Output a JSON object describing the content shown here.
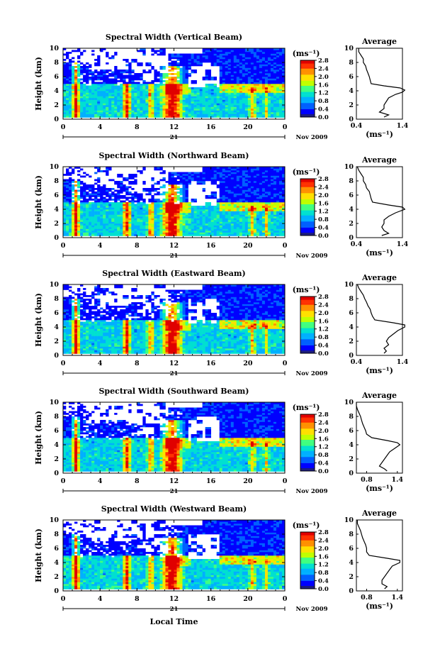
{
  "figure": {
    "xlabel": "Local Time",
    "date_label": "Nov 2009",
    "day_label": "21",
    "ylabel": "Height (km)",
    "colorbar_unit": "(ms⁻¹)",
    "profile_unit": "(ms⁻¹)",
    "profile_title": "Average"
  },
  "chart_data": [
    {
      "type": "heatmap",
      "title": "Spectral Width (Vertical Beam)",
      "xlabel": "Local Time",
      "ylabel": "Height (km)",
      "x_ticks": [
        "0",
        "4",
        "8",
        "12",
        "16",
        "20",
        "0"
      ],
      "xlim": [
        0,
        24
      ],
      "y_ticks": [
        "0",
        "2",
        "4",
        "6",
        "8",
        "10"
      ],
      "ylim": [
        0,
        10
      ],
      "colorbar": {
        "ticks": [
          "0.0",
          "0.4",
          "0.8",
          "1.2",
          "1.6",
          "2.0",
          "2.4",
          "2.8"
        ],
        "range": [
          0,
          2.8
        ],
        "colors": [
          "#1a1a80",
          "#0000ff",
          "#0060ff",
          "#00b0ff",
          "#00e0d0",
          "#40ff80",
          "#c0ff00",
          "#ffe000",
          "#ff9000",
          "#ff3000",
          "#e00000"
        ]
      },
      "profile": {
        "title": "Average",
        "x_ticks": [
          "0.4",
          "1.4"
        ],
        "xlim": [
          0.4,
          1.4
        ],
        "heights": [
          0.3,
          0.6,
          1.0,
          1.5,
          2.0,
          2.5,
          3.0,
          3.5,
          3.8,
          4.1,
          4.4,
          4.7,
          5.0,
          5.5,
          6.0,
          6.5,
          7.0,
          7.5,
          8.0,
          8.5,
          9.0,
          9.5,
          10.0
        ],
        "values": [
          1.0,
          1.1,
          0.9,
          1.0,
          1.0,
          1.05,
          1.1,
          1.25,
          1.4,
          1.45,
          1.35,
          1.0,
          0.72,
          0.7,
          0.68,
          0.65,
          0.62,
          0.6,
          0.55,
          0.55,
          0.5,
          0.45,
          0.45
        ]
      }
    },
    {
      "type": "heatmap",
      "title": "Spectral Width (Northward Beam)",
      "xlabel": "Local Time",
      "ylabel": "Height (km)",
      "x_ticks": [
        "0",
        "4",
        "8",
        "12",
        "16",
        "20",
        "0"
      ],
      "xlim": [
        0,
        24
      ],
      "y_ticks": [
        "0",
        "2",
        "4",
        "6",
        "8",
        "10"
      ],
      "ylim": [
        0,
        10
      ],
      "colorbar": {
        "ticks": [
          "0.0",
          "0.4",
          "0.8",
          "1.2",
          "1.6",
          "2.0",
          "2.4",
          "2.8"
        ],
        "range": [
          0,
          2.8
        ],
        "colors": [
          "#1a1a80",
          "#0000ff",
          "#0060ff",
          "#00b0ff",
          "#00e0d0",
          "#40ff80",
          "#c0ff00",
          "#ffe000",
          "#ff9000",
          "#ff3000",
          "#e00000"
        ]
      },
      "profile": {
        "title": "Average",
        "x_ticks": [
          "0.4",
          "1.4"
        ],
        "xlim": [
          0.4,
          1.4
        ],
        "heights": [
          0.3,
          0.6,
          1.0,
          1.5,
          2.0,
          2.5,
          3.0,
          3.5,
          4.0,
          4.3,
          4.6,
          5.0,
          5.5,
          6.0,
          6.5,
          7.0,
          7.5,
          8.0,
          8.5,
          9.0,
          9.5,
          10.0
        ],
        "values": [
          0.95,
          1.1,
          1.0,
          0.95,
          1.0,
          1.0,
          1.1,
          1.25,
          1.45,
          1.4,
          1.1,
          0.75,
          0.72,
          0.7,
          0.68,
          0.62,
          0.6,
          0.55,
          0.55,
          0.5,
          0.45,
          0.42
        ]
      }
    },
    {
      "type": "heatmap",
      "title": "Spectral Width (Eastward Beam)",
      "xlabel": "Local Time",
      "ylabel": "Height (km)",
      "x_ticks": [
        "0",
        "4",
        "8",
        "12",
        "16",
        "20",
        "0"
      ],
      "xlim": [
        0,
        24
      ],
      "y_ticks": [
        "0",
        "2",
        "4",
        "6",
        "8",
        "10"
      ],
      "ylim": [
        0,
        10
      ],
      "colorbar": {
        "ticks": [
          "0.0",
          "0.4",
          "0.8",
          "1.2",
          "1.6",
          "2.0",
          "2.4",
          "2.8"
        ],
        "range": [
          0,
          2.8
        ],
        "colors": [
          "#1a1a80",
          "#0000ff",
          "#0060ff",
          "#00b0ff",
          "#00e0d0",
          "#40ff80",
          "#c0ff00",
          "#ffe000",
          "#ff9000",
          "#ff3000",
          "#e00000"
        ]
      },
      "profile": {
        "title": "Average",
        "x_ticks": [
          "0.4",
          "1.4"
        ],
        "xlim": [
          0.4,
          1.4
        ],
        "heights": [
          0.3,
          0.6,
          1.0,
          1.5,
          2.0,
          2.5,
          3.0,
          3.5,
          4.0,
          4.3,
          4.6,
          5.0,
          5.5,
          6.0,
          6.5,
          7.0,
          7.5,
          8.0,
          8.5,
          9.0,
          9.5,
          10.0
        ],
        "values": [
          1.0,
          1.05,
          1.0,
          1.1,
          1.05,
          1.1,
          1.2,
          1.3,
          1.45,
          1.45,
          1.2,
          0.8,
          0.75,
          0.72,
          0.7,
          0.65,
          0.62,
          0.58,
          0.55,
          0.5,
          0.45,
          0.42
        ]
      }
    },
    {
      "type": "heatmap",
      "title": "Spectral Width (Southward Beam)",
      "xlabel": "Local Time",
      "ylabel": "Height (km)",
      "x_ticks": [
        "0",
        "4",
        "8",
        "12",
        "16",
        "20",
        "0"
      ],
      "xlim": [
        0,
        24
      ],
      "y_ticks": [
        "0",
        "2",
        "4",
        "6",
        "8",
        "10"
      ],
      "ylim": [
        0,
        10
      ],
      "colorbar": {
        "ticks": [
          "0.0",
          "0.4",
          "0.8",
          "1.2",
          "1.6",
          "2.0",
          "2.4",
          "2.8"
        ],
        "range": [
          0,
          2.8
        ],
        "colors": [
          "#1a1a80",
          "#0000ff",
          "#0060ff",
          "#00b0ff",
          "#00e0d0",
          "#40ff80",
          "#c0ff00",
          "#ffe000",
          "#ff9000",
          "#ff3000",
          "#e00000"
        ]
      },
      "profile": {
        "title": "Average",
        "x_ticks": [
          "0.8",
          "1.4"
        ],
        "xlim": [
          0.6,
          1.5
        ],
        "heights": [
          0.3,
          0.6,
          1.0,
          1.5,
          2.0,
          2.5,
          3.0,
          3.5,
          4.0,
          4.3,
          4.6,
          5.0,
          5.5,
          6.0,
          6.5,
          7.0,
          7.5,
          8.0,
          8.5,
          9.0,
          9.5,
          10.0
        ],
        "values": [
          1.2,
          1.15,
          1.05,
          1.1,
          1.15,
          1.2,
          1.25,
          1.35,
          1.45,
          1.4,
          1.2,
          0.9,
          0.8,
          0.78,
          0.75,
          0.72,
          0.7,
          0.68,
          0.65,
          0.62,
          0.6,
          0.6
        ]
      }
    },
    {
      "type": "heatmap",
      "title": "Spectral Width (Westward Beam)",
      "xlabel": "Local Time",
      "ylabel": "Height (km)",
      "x_ticks": [
        "0",
        "4",
        "8",
        "12",
        "16",
        "20",
        "0"
      ],
      "xlim": [
        0,
        24
      ],
      "y_ticks": [
        "0",
        "2",
        "4",
        "6",
        "8",
        "10"
      ],
      "ylim": [
        0,
        10
      ],
      "colorbar": {
        "ticks": [
          "0.0",
          "0.4",
          "0.8",
          "1.2",
          "1.6",
          "2.0",
          "2.4",
          "2.8"
        ],
        "range": [
          0,
          2.8
        ],
        "colors": [
          "#1a1a80",
          "#0000ff",
          "#0060ff",
          "#00b0ff",
          "#00e0d0",
          "#40ff80",
          "#c0ff00",
          "#ffe000",
          "#ff9000",
          "#ff3000",
          "#e00000"
        ]
      },
      "profile": {
        "title": "Average",
        "x_ticks": [
          "0.8",
          "1.4"
        ],
        "xlim": [
          0.6,
          1.5
        ],
        "heights": [
          0.3,
          0.6,
          1.0,
          1.5,
          2.0,
          2.5,
          3.0,
          3.5,
          4.0,
          4.3,
          4.6,
          5.0,
          5.5,
          6.0,
          6.5,
          7.0,
          7.5,
          8.0,
          8.5,
          9.0,
          9.5,
          10.0
        ],
        "values": [
          1.15,
          1.2,
          1.1,
          1.1,
          1.15,
          1.2,
          1.25,
          1.3,
          1.45,
          1.45,
          1.2,
          0.85,
          0.8,
          0.8,
          0.78,
          0.75,
          0.72,
          0.7,
          0.68,
          0.65,
          0.62,
          0.62
        ]
      }
    }
  ]
}
